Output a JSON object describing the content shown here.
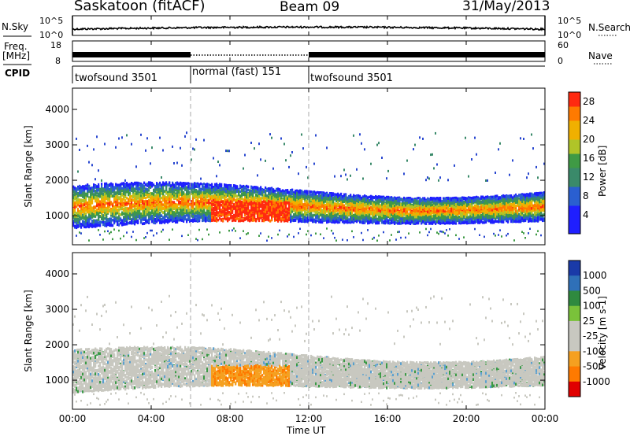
{
  "header": {
    "station": "Saskatoon (fitACF)",
    "beam": "Beam 09",
    "date": "31/May/2013"
  },
  "nsky_panel": {
    "left_label": "N.Sky",
    "left_ticks": [
      "10^5",
      "10^0"
    ],
    "right_label": "N.Search",
    "right_ticks": [
      "10^5",
      "10^0"
    ]
  },
  "freq_panel": {
    "left_label_1": "Freq.",
    "left_label_2": "[MHz]",
    "left_ticks": [
      "18",
      "8"
    ],
    "right_label": "Nave",
    "right_ticks": [
      "60",
      "0"
    ]
  },
  "cpid": {
    "label": "CPID",
    "modes": [
      {
        "name": "twofsound 3501",
        "start": 0,
        "end": 6
      },
      {
        "name": "normal (fast) 151",
        "start": 6,
        "end": 12
      },
      {
        "name": "twofsound 3501",
        "start": 12,
        "end": 24
      }
    ]
  },
  "chart_data": [
    {
      "type": "heatmap",
      "ylabel": "Slant Range [km]",
      "ylim": [
        180,
        4600
      ],
      "yticks": [
        "1000",
        "2000",
        "3000",
        "4000"
      ],
      "xlim": [
        0,
        24
      ],
      "colorbar": {
        "label": "Power [dB]",
        "ticks": [
          "4",
          "8",
          "12",
          "16",
          "20",
          "24",
          "28"
        ],
        "range": [
          0,
          30
        ]
      }
    },
    {
      "type": "heatmap",
      "ylabel": "Slant Range [km]",
      "ylim": [
        180,
        4600
      ],
      "yticks": [
        "1000",
        "2000",
        "3000",
        "4000"
      ],
      "xlim": [
        0,
        24
      ],
      "xticks": [
        "00:00",
        "04:00",
        "08:00",
        "12:00",
        "16:00",
        "20:00",
        "00:00"
      ],
      "xlabel": "Time UT",
      "colorbar": {
        "label": "Velocity [m s-1]",
        "ticks": [
          "1000",
          "500",
          "100",
          "25",
          "-25",
          "-100",
          "-500",
          "-1000"
        ]
      }
    }
  ]
}
